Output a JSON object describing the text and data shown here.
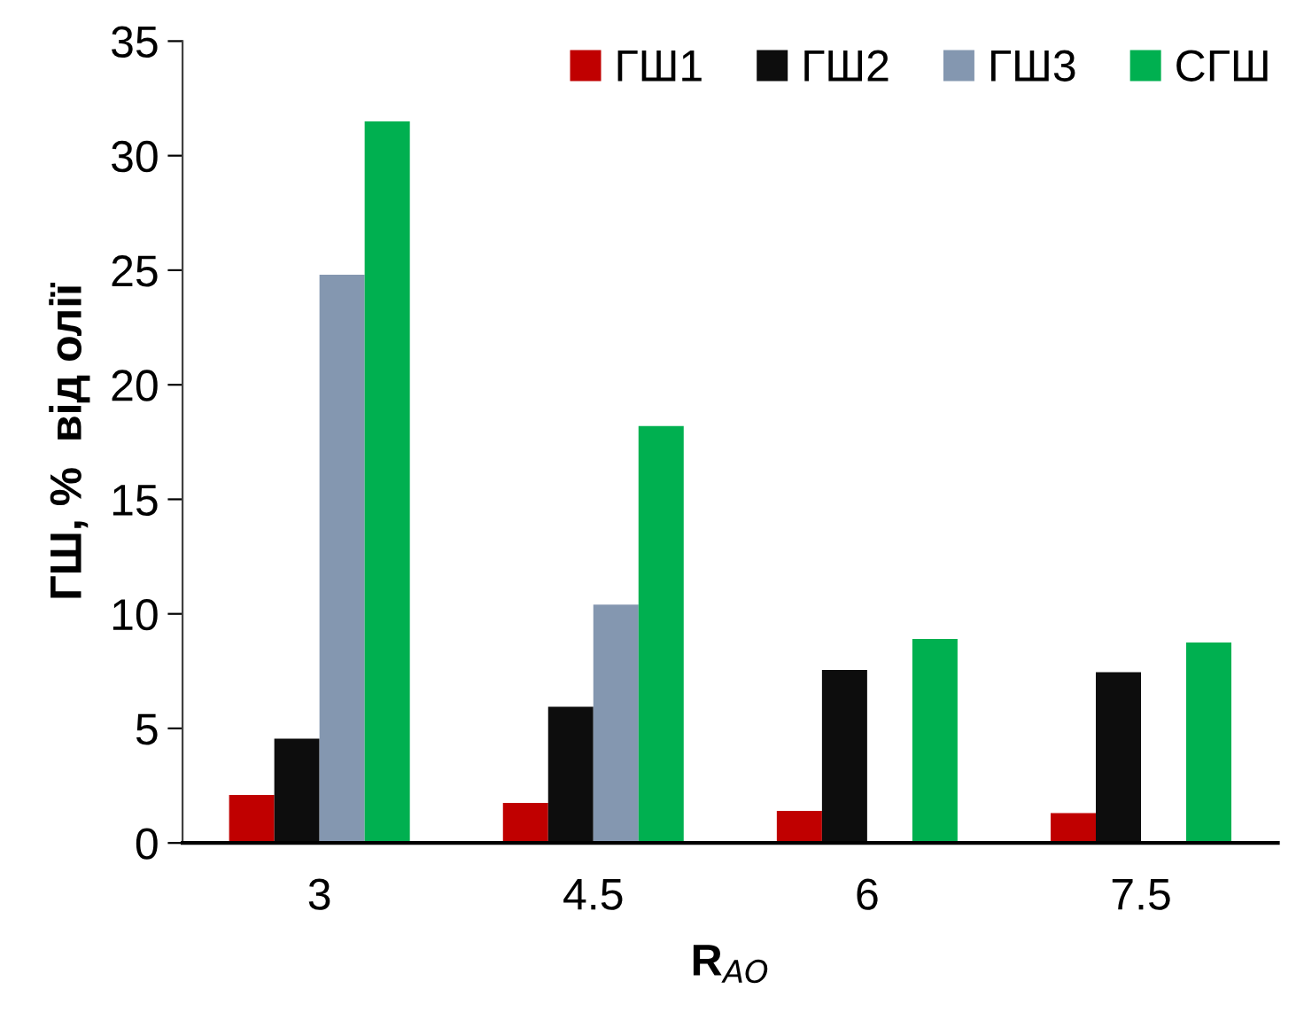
{
  "chart_data": {
    "type": "bar",
    "xlabel": "R$_{AO}$",
    "ylabel": "ГШ, %  від олії",
    "categories": [
      "3",
      "4.5",
      "6",
      "7.5"
    ],
    "series": [
      {
        "name": "ГШ1",
        "color": "#c00000",
        "values": [
          2.1,
          1.75,
          1.4,
          1.3
        ]
      },
      {
        "name": "ГШ2",
        "color": "#0d0d0d",
        "values": [
          4.55,
          5.95,
          7.55,
          7.45
        ]
      },
      {
        "name": "ГШ3",
        "color": "#8497b0",
        "values": [
          24.8,
          10.4,
          null,
          null
        ]
      },
      {
        "name": "СГШ",
        "color": "#00b050",
        "values": [
          31.5,
          18.2,
          8.9,
          8.75
        ]
      }
    ],
    "ylim": [
      0,
      35
    ],
    "yticks": [
      0,
      5,
      10,
      15,
      20,
      25,
      30,
      35
    ],
    "grid": false,
    "legend": "top right"
  }
}
